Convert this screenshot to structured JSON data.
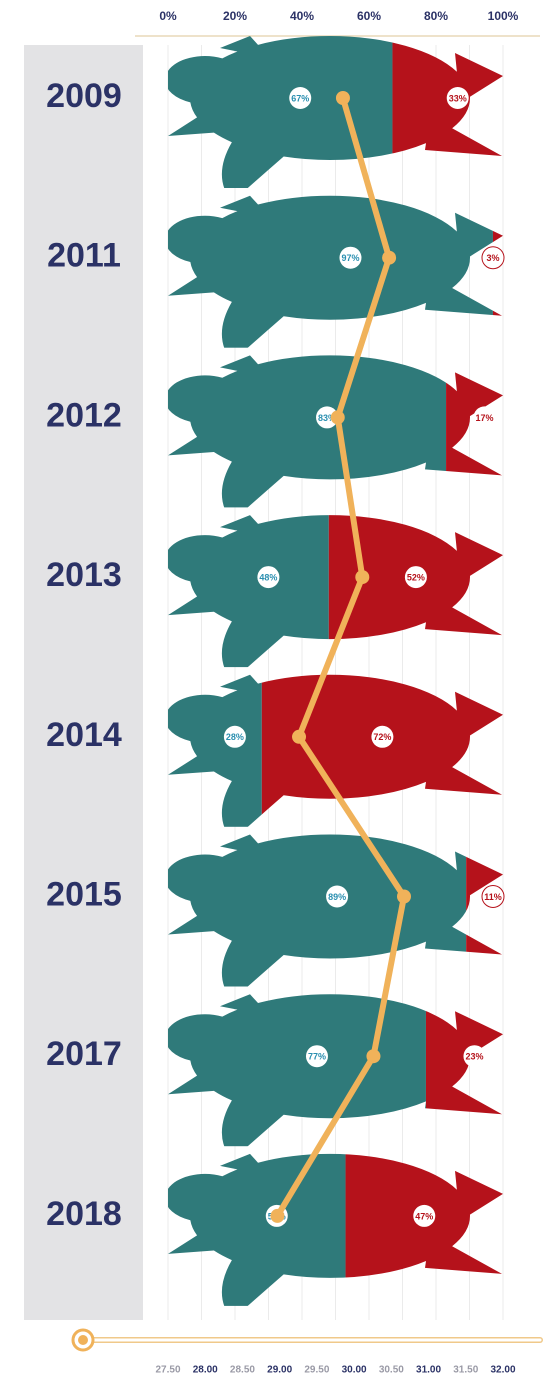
{
  "chart_data": {
    "type": "bar",
    "stacked": true,
    "orientation": "horizontal",
    "categories": [
      "2009",
      "2011",
      "2012",
      "2013",
      "2014",
      "2015",
      "2017",
      "2018"
    ],
    "series": [
      {
        "color": "#2f7a7a",
        "values": [
          67,
          97,
          83,
          48,
          28,
          89,
          77,
          53
        ],
        "value_labels": [
          "67%",
          "97%",
          "83%",
          "48%",
          "28%",
          "89%",
          "77%",
          "53%"
        ]
      },
      {
        "color": "#b5121b",
        "values": [
          33,
          3,
          17,
          52,
          72,
          11,
          23,
          47
        ],
        "value_labels": [
          "33%",
          "3%",
          "17%",
          "52%",
          "72%",
          "11%",
          "23%",
          "47%"
        ]
      },
      {
        "type": "line",
        "axis": "x2",
        "color": "#f0b25a",
        "values": [
          29.85,
          30.47,
          29.78,
          30.11,
          29.26,
          30.67,
          30.26,
          28.97
        ]
      }
    ],
    "xlim": [
      0,
      100
    ],
    "xticks": [
      {
        "value": 0,
        "label": "0%"
      },
      {
        "value": 20,
        "label": "20%"
      },
      {
        "value": 40,
        "label": "40%"
      },
      {
        "value": 60,
        "label": "60%"
      },
      {
        "value": 80,
        "label": "80%"
      },
      {
        "value": 100,
        "label": "100%"
      }
    ],
    "x2lim": [
      27.5,
      32
    ],
    "x2ticks": [
      {
        "value": 27.5,
        "label": "27.50"
      },
      {
        "value": 28,
        "label": "28.00"
      },
      {
        "value": 28.5,
        "label": "28.50"
      },
      {
        "value": 29,
        "label": "29.00"
      },
      {
        "value": 29.5,
        "label": "29.50"
      },
      {
        "value": 30,
        "label": "30.00"
      },
      {
        "value": 30.5,
        "label": "30.50"
      },
      {
        "value": 31,
        "label": "31.00"
      },
      {
        "value": 31.5,
        "label": "31.50"
      },
      {
        "value": 32,
        "label": "32.00"
      }
    ],
    "grid": true
  }
}
